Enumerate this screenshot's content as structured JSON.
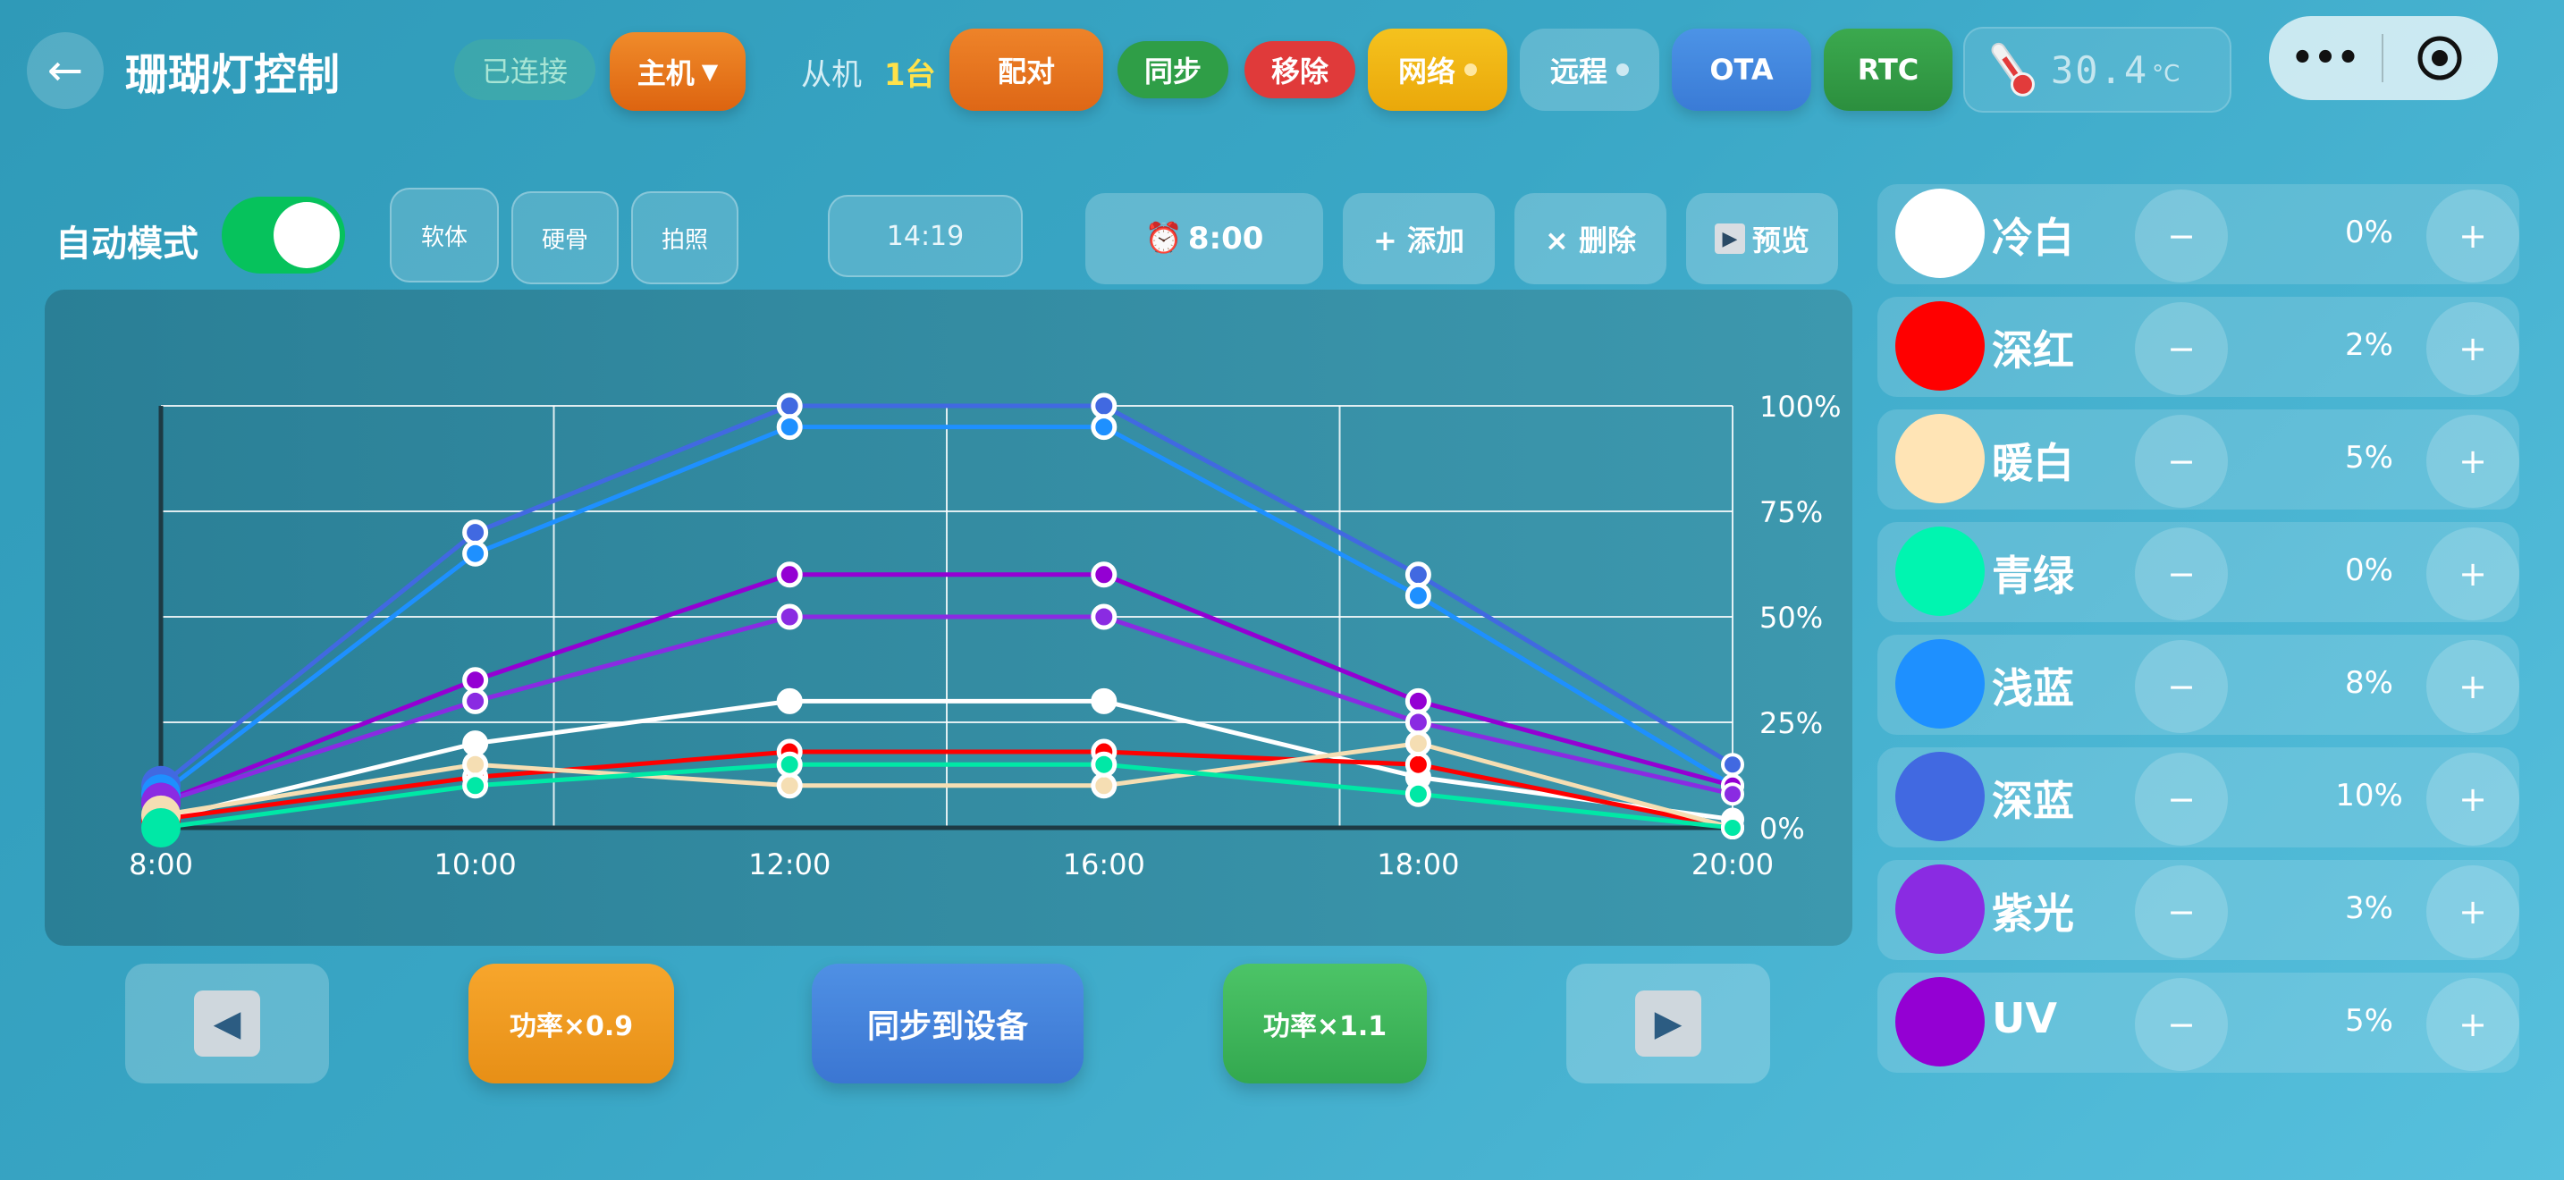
{
  "header": {
    "back_icon": "←",
    "title": "珊瑚灯控制",
    "status": "已连接",
    "host_label": "主机",
    "host_dropdown_icon": "▼",
    "slave_label": "从机",
    "slave_count": "1台",
    "buttons": {
      "pair": "配对",
      "sync": "同步",
      "remove": "移除",
      "network": "网络",
      "remote": "远程",
      "ota": "OTA",
      "rtc": "RTC"
    },
    "temperature": "30.4",
    "temperature_unit": "°C"
  },
  "mini_program": {
    "more_icon": "•••",
    "target_icon": "◎"
  },
  "controls": {
    "auto_mode_label": "自动模式",
    "auto_mode_on": true,
    "presets": [
      "软体",
      "硬骨",
      "拍照"
    ],
    "current_time": "14:19",
    "alarm_time": "8:00",
    "alarm_icon": "⏰",
    "add_label": "+ 添加",
    "delete_label": "× 删除",
    "preview_label": "预览",
    "preview_icon": "▶"
  },
  "chart_data": {
    "type": "line",
    "x": [
      "8:00",
      "10:00",
      "12:00",
      "16:00",
      "18:00",
      "20:00"
    ],
    "y_ticks": [
      "100%",
      "75%",
      "50%",
      "25%",
      "0%"
    ],
    "ylim": [
      0,
      100
    ],
    "series": [
      {
        "color": "#4169e1",
        "values": [
          10,
          70,
          100,
          100,
          60,
          15
        ]
      },
      {
        "color": "#1e90ff",
        "values": [
          8,
          65,
          95,
          95,
          55,
          10
        ]
      },
      {
        "color": "#9400d3",
        "values": [
          6,
          35,
          60,
          60,
          30,
          10
        ]
      },
      {
        "color": "#8a2be2",
        "values": [
          6,
          30,
          50,
          50,
          25,
          8
        ]
      },
      {
        "color": "#ffffff",
        "values": [
          2,
          20,
          30,
          30,
          12,
          2
        ]
      },
      {
        "color": "#ff0000",
        "values": [
          2,
          12,
          18,
          18,
          15,
          0
        ]
      },
      {
        "color": "#f5deb3",
        "values": [
          3,
          15,
          10,
          10,
          20,
          0
        ]
      },
      {
        "color": "#00e8a6",
        "values": [
          0,
          10,
          15,
          15,
          8,
          0
        ]
      }
    ]
  },
  "bottom": {
    "prev_icon": "◀",
    "power_down": "功率×0.9",
    "sync_device": "同步到设备",
    "power_up": "功率×1.1",
    "next_icon": "▶"
  },
  "channels": [
    {
      "name": "冷白",
      "value": "0%",
      "color": "#ffffff"
    },
    {
      "name": "深红",
      "value": "2%",
      "color": "#ff0000"
    },
    {
      "name": "暖白",
      "value": "5%",
      "color": "#ffe4b5"
    },
    {
      "name": "青绿",
      "value": "0%",
      "color": "#00f5b0"
    },
    {
      "name": "浅蓝",
      "value": "8%",
      "color": "#1e90ff"
    },
    {
      "name": "深蓝",
      "value": "10%",
      "color": "#4169e1"
    },
    {
      "name": "紫光",
      "value": "3%",
      "color": "#8a2be2"
    },
    {
      "name": "UV",
      "value": "5%",
      "color": "#9400d3"
    }
  ],
  "channel_minus": "−",
  "channel_plus": "+"
}
